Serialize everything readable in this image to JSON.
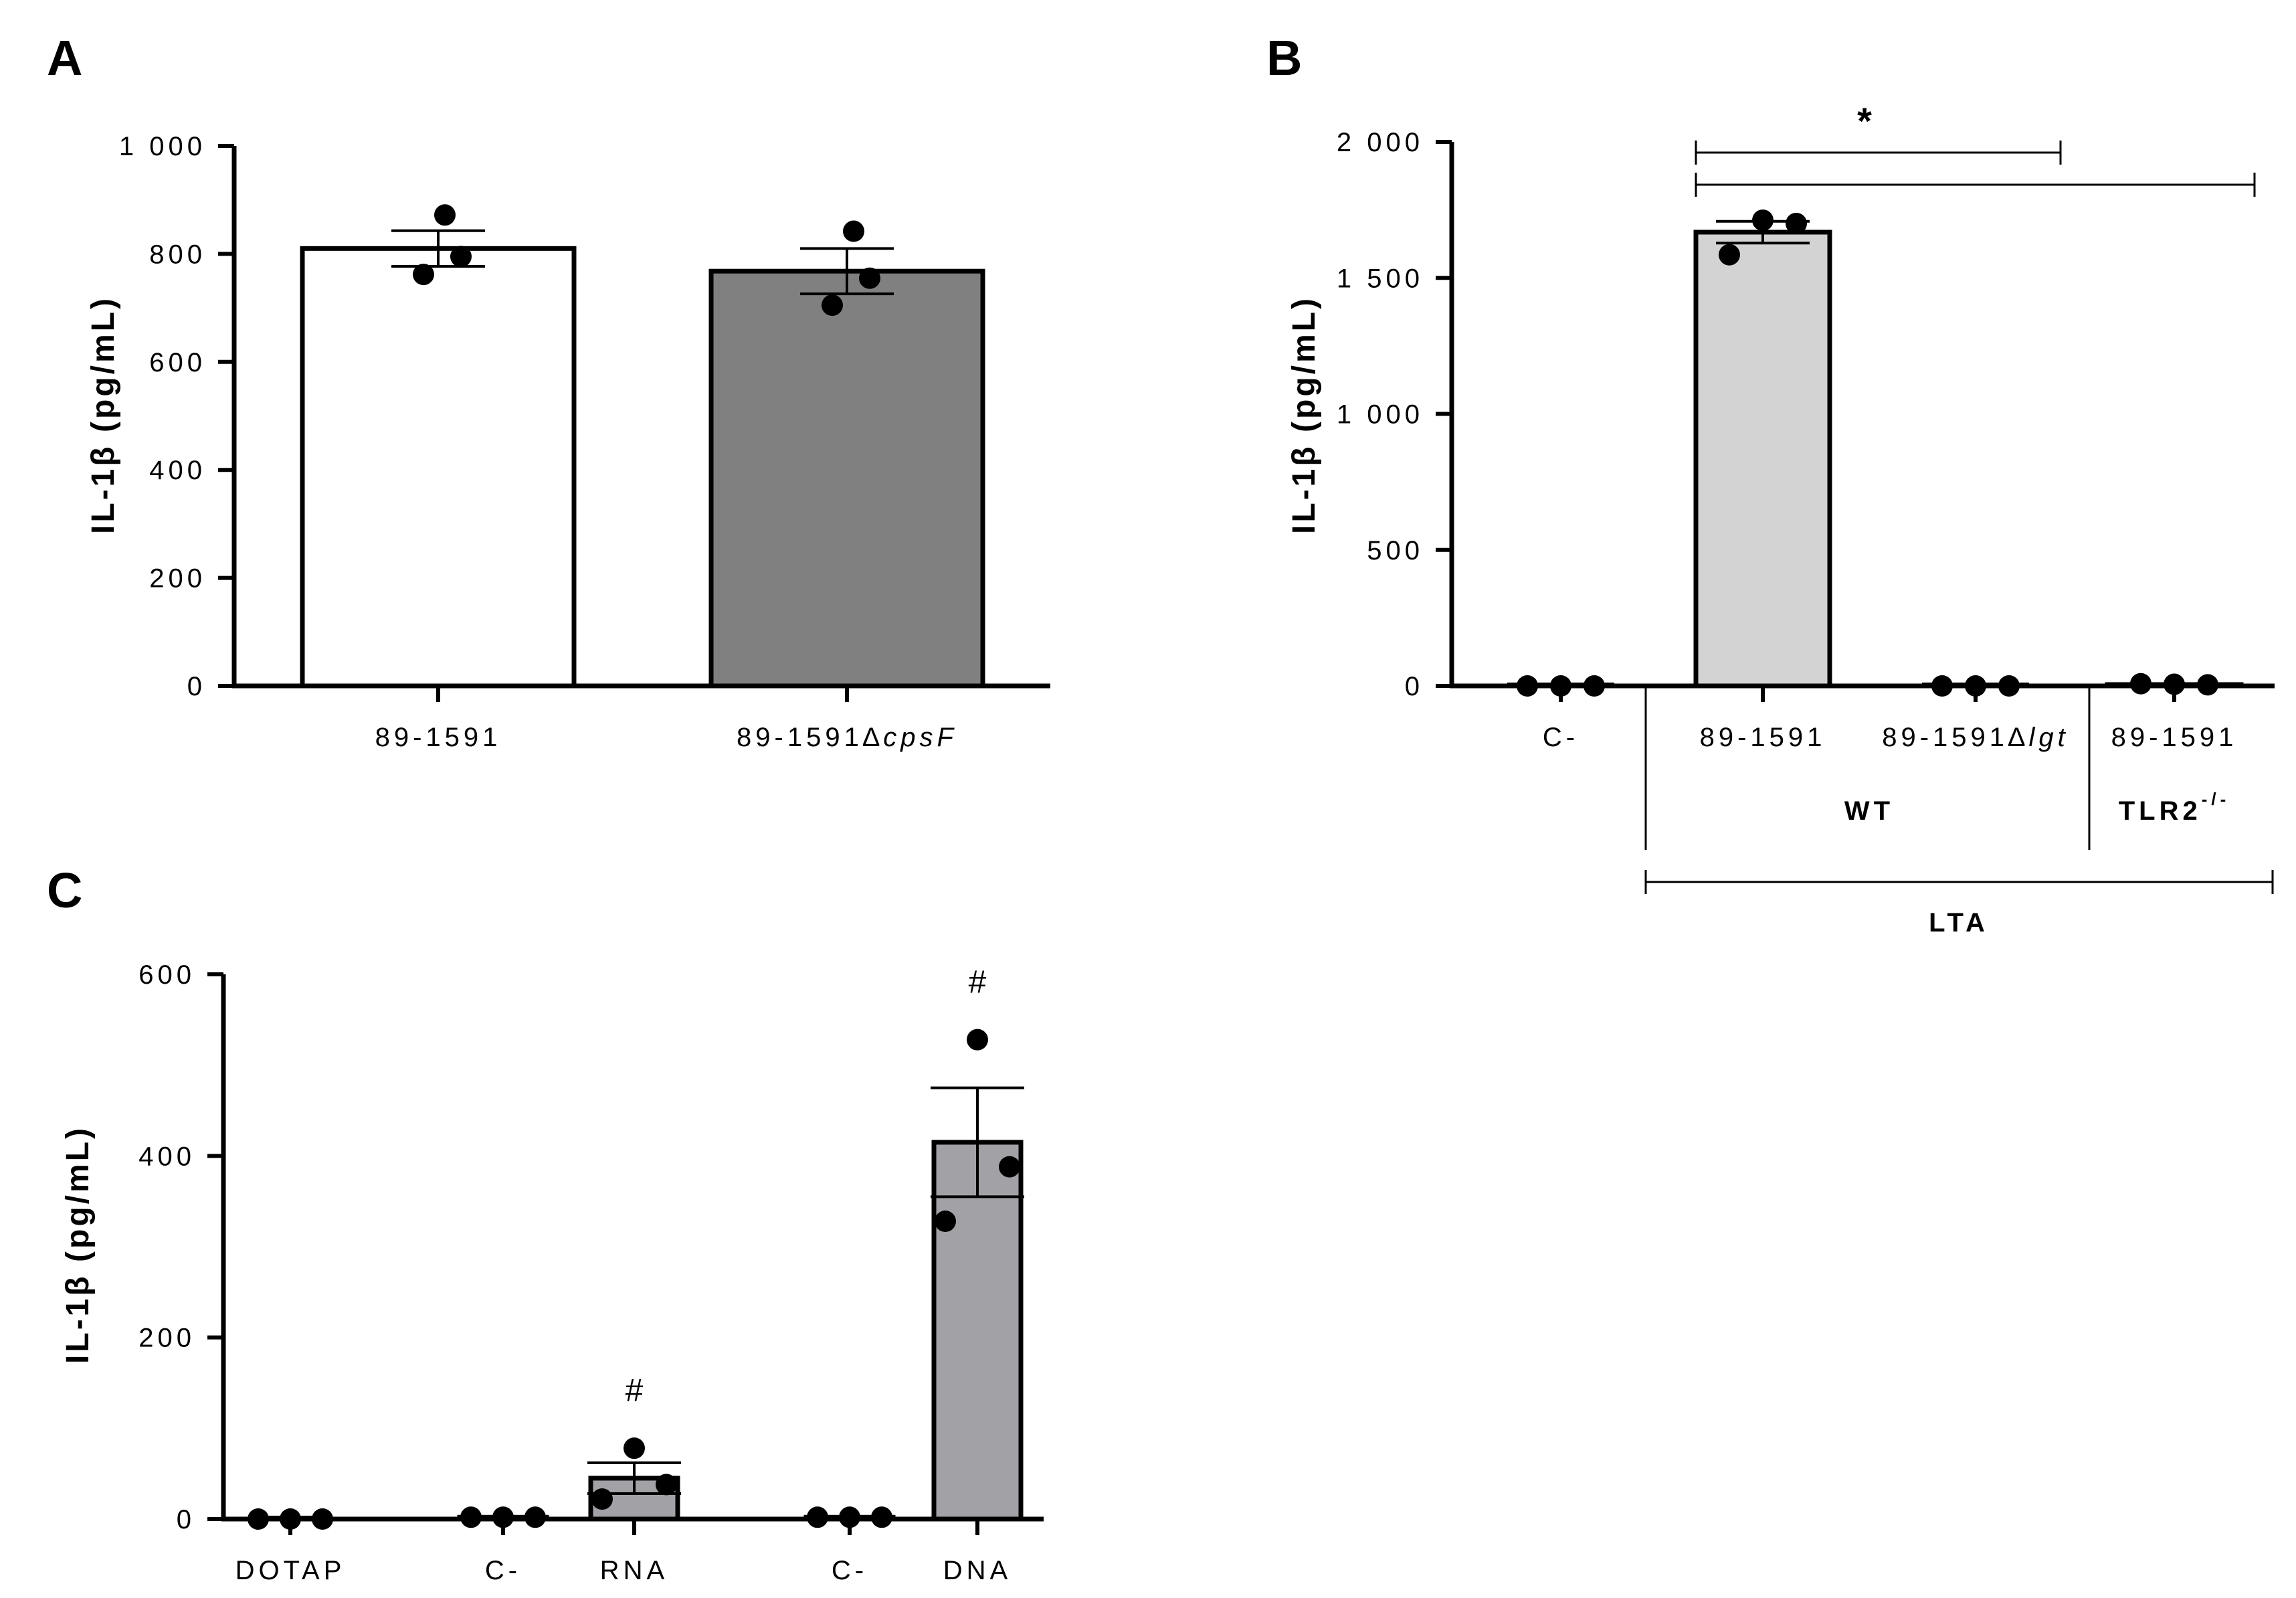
{
  "panel_letters": {
    "a": "A",
    "b": "B",
    "c": "C"
  },
  "chart_data": [
    {
      "panel": "A",
      "type": "bar",
      "ylabel": "IL-1β (pg/mL)",
      "ylim": [
        0,
        1000
      ],
      "yticks": [
        0,
        200,
        400,
        600,
        800,
        1000
      ],
      "ytick_labels": [
        "0",
        "200",
        "400",
        "600",
        "800",
        "1 000"
      ],
      "categories": [
        {
          "label": "89-1591",
          "suffix": ""
        },
        {
          "label": "89-1591∆",
          "suffix": "cpsF"
        }
      ],
      "values": [
        810,
        768
      ],
      "errors": [
        33,
        42
      ],
      "points": [
        [
          872,
          795,
          762
        ],
        [
          842,
          755,
          705
        ]
      ],
      "bar_colors": [
        "#ffffff",
        "#808080"
      ]
    },
    {
      "panel": "B",
      "type": "bar",
      "ylabel": "IL-1β (pg/mL)",
      "ylim": [
        0,
        2000
      ],
      "yticks": [
        0,
        500,
        1000,
        1500,
        2000
      ],
      "ytick_labels": [
        "0",
        "500",
        "1 000",
        "1 500",
        "2 000"
      ],
      "categories": [
        {
          "label": "C-",
          "suffix": ""
        },
        {
          "label": "89-1591",
          "suffix": ""
        },
        {
          "label": "89-1591∆",
          "suffix": "lgt"
        },
        {
          "label": "89-1591",
          "suffix": ""
        }
      ],
      "values": [
        0,
        1668,
        0,
        5
      ],
      "errors": [
        0,
        40,
        0,
        0
      ],
      "points": [
        [
          0,
          0,
          0
        ],
        [
          1712,
          1700,
          1585
        ],
        [
          0,
          0,
          0
        ],
        [
          6,
          4,
          8
        ]
      ],
      "bar_colors": [
        "#d3d3d3",
        "#d3d3d3",
        "#d3d3d3",
        "#d3d3d3"
      ],
      "groups": {
        "wt": "WT",
        "tlr2": "TLR2",
        "tlr2_sup": "-/-",
        "lta": "LTA"
      },
      "significance": "*"
    },
    {
      "panel": "C",
      "type": "bar",
      "ylabel": "IL-1β (pg/mL)",
      "ylim": [
        0,
        600
      ],
      "yticks": [
        0,
        200,
        400,
        600
      ],
      "ytick_labels": [
        "0",
        "200",
        "400",
        "600"
      ],
      "categories": [
        {
          "label": "DOTAP",
          "suffix": ""
        },
        {
          "label": "C-",
          "suffix": ""
        },
        {
          "label": "RNA",
          "suffix": ""
        },
        {
          "label": "C-",
          "suffix": ""
        },
        {
          "label": "DNA",
          "suffix": ""
        }
      ],
      "values": [
        0,
        2,
        45,
        2,
        415
      ],
      "errors": [
        0,
        0,
        17,
        0,
        60
      ],
      "points": [
        [
          0,
          0,
          0
        ],
        [
          2,
          2,
          2
        ],
        [
          78,
          38,
          22
        ],
        [
          2,
          2,
          2
        ],
        [
          528,
          388,
          328
        ]
      ],
      "bar_colors": [
        "#a1a1a6",
        "#a1a1a6",
        "#a1a1a6",
        "#a1a1a6",
        "#a1a1a6"
      ],
      "markers": [
        "",
        "",
        "#",
        "",
        "#"
      ]
    }
  ]
}
